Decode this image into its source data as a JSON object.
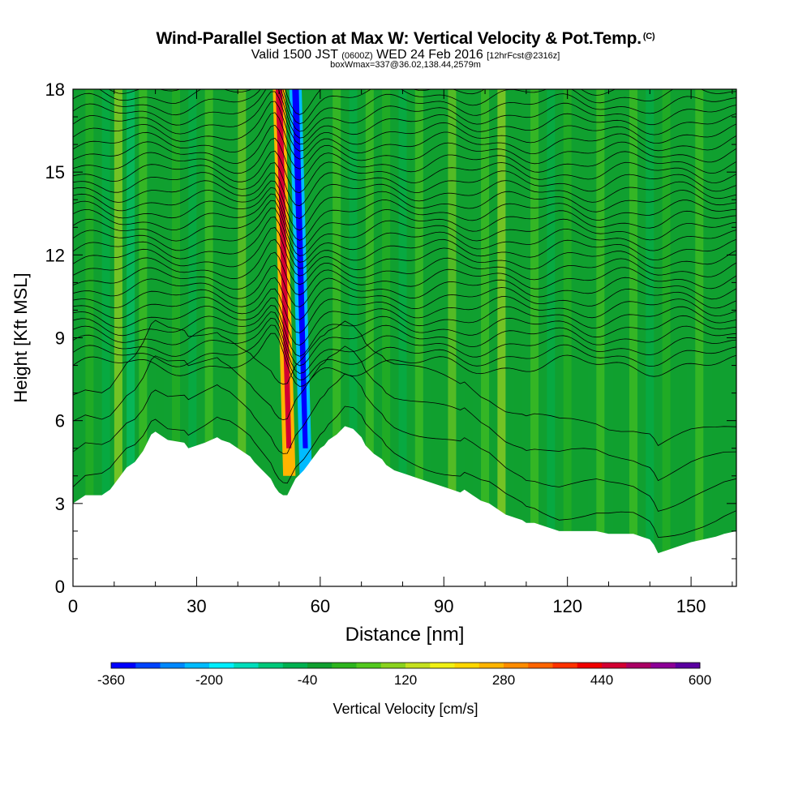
{
  "title": "Wind-Parallel Section at Max W: Vertical Velocity & Pot.Temp.",
  "copyright_mark": "(C)",
  "subtitle": {
    "valid_label": "Valid 1500 JST",
    "utc": "(0600Z)",
    "date": "WED 24 Feb 2016",
    "forecast": "[12hrFcst@2316z]"
  },
  "box_info": "boxWmax=337@36.02,138.44,2579m",
  "chart_data": {
    "type": "heatmap",
    "xlabel": "Distance [nm]",
    "ylabel": "Height [Kft MSL]",
    "xlim": [
      0,
      161
    ],
    "ylim": [
      0,
      18
    ],
    "x_ticks": [
      0,
      30,
      60,
      90,
      120,
      150
    ],
    "y_ticks": [
      0,
      3,
      6,
      9,
      12,
      15,
      18
    ],
    "grid": false,
    "colorbar": {
      "label": "Vertical Velocity [cm/s]",
      "placement": "bottom",
      "range": [
        -360,
        600
      ],
      "tick_labels": [
        -360,
        -200,
        -40,
        120,
        280,
        440,
        600
      ],
      "colors": [
        "#0000ff",
        "#0044ff",
        "#0088ff",
        "#00bbff",
        "#00eeff",
        "#00ddbb",
        "#00c87a",
        "#00b050",
        "#10a030",
        "#2db41e",
        "#52c81e",
        "#8ad21e",
        "#c4e01e",
        "#f0f014",
        "#ffd700",
        "#ffb400",
        "#ff8c00",
        "#ff6400",
        "#ff3200",
        "#f00000",
        "#d20032",
        "#aa0064",
        "#8c0096",
        "#5a00a0"
      ]
    },
    "terrain": {
      "x": [
        0,
        3,
        7,
        9,
        10,
        11,
        12,
        13,
        15,
        17,
        18,
        19,
        20,
        23,
        27,
        28,
        32,
        35,
        36,
        38,
        40,
        41,
        43,
        44,
        46,
        48,
        49,
        50,
        51,
        52,
        53,
        54,
        56,
        57,
        58,
        59,
        60,
        61,
        62,
        64,
        66,
        68,
        70,
        71,
        73,
        75,
        76,
        78,
        80,
        82,
        84,
        86,
        88,
        90,
        92,
        94,
        95,
        97,
        99,
        101,
        103,
        105,
        107,
        109,
        110,
        112,
        114,
        116,
        118,
        121,
        124,
        127,
        130,
        133,
        136,
        138,
        140,
        141,
        142,
        144,
        146,
        148,
        150,
        153,
        156,
        158,
        161
      ],
      "height_kft": [
        3.0,
        3.3,
        3.3,
        3.5,
        3.7,
        3.9,
        4.1,
        4.3,
        4.5,
        4.9,
        5.2,
        5.5,
        5.6,
        5.3,
        5.2,
        5.0,
        5.2,
        5.4,
        5.3,
        5.2,
        5.0,
        4.9,
        4.7,
        4.5,
        4.2,
        3.9,
        3.6,
        3.4,
        3.3,
        3.3,
        3.6,
        3.9,
        4.2,
        4.4,
        4.6,
        4.8,
        5.0,
        5.1,
        5.3,
        5.5,
        5.8,
        5.7,
        5.4,
        5.1,
        4.8,
        4.6,
        4.4,
        4.2,
        4.1,
        4.0,
        3.9,
        3.8,
        3.7,
        3.6,
        3.5,
        3.4,
        3.5,
        3.3,
        3.1,
        3.0,
        2.8,
        2.6,
        2.5,
        2.4,
        2.3,
        2.3,
        2.2,
        2.1,
        2.0,
        2.0,
        2.0,
        2.0,
        1.9,
        1.9,
        1.9,
        1.8,
        1.7,
        1.5,
        1.2,
        1.3,
        1.4,
        1.5,
        1.6,
        1.7,
        1.8,
        1.9,
        2.0
      ]
    },
    "vertical_velocity_cm_s": {
      "background": -40,
      "updraft_max": 440,
      "updraft_x_nm": 50,
      "downdraft_min": -360,
      "downdraft_x_nm": 54
    },
    "pot_temp_isentropes_count": 30
  }
}
